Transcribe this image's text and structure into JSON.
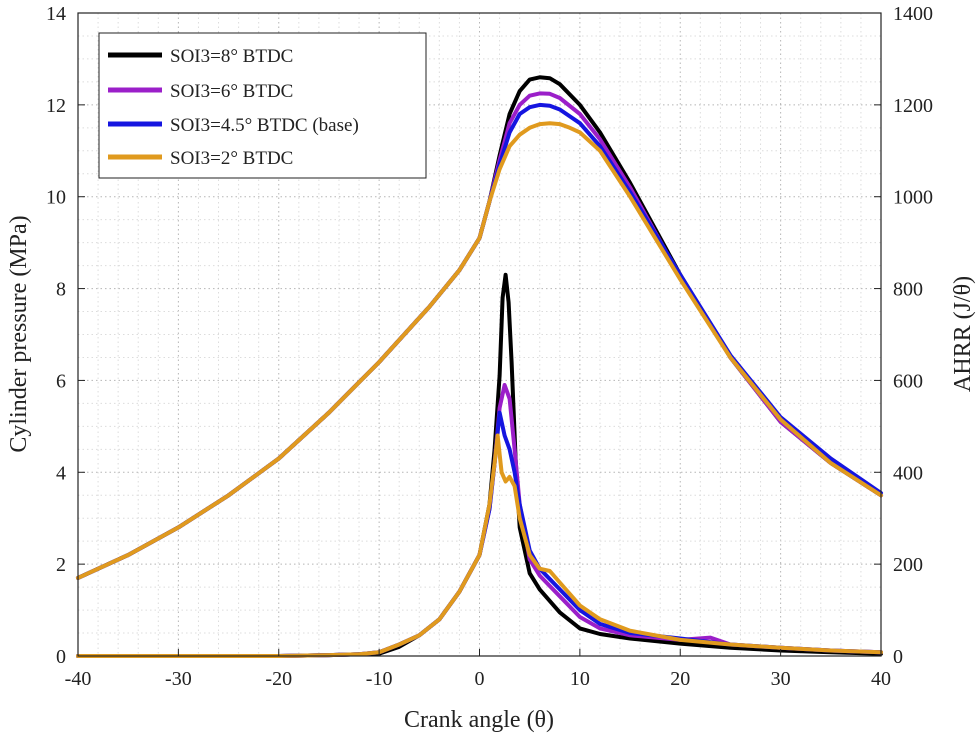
{
  "chart_data": {
    "type": "line",
    "title": "",
    "xlabel": "Crank angle (θ)",
    "ylabel_left": "Cylinder pressure (MPa)",
    "ylabel_right": "AHRR (J/θ)",
    "xlim": [
      -40,
      40
    ],
    "ylim_left": [
      0,
      14
    ],
    "ylim_right": [
      0,
      1400
    ],
    "xticks": [
      -40,
      -30,
      -20,
      -10,
      0,
      10,
      20,
      30,
      40
    ],
    "yticks_left": [
      0,
      2,
      4,
      6,
      8,
      10,
      12,
      14
    ],
    "yticks_right": [
      0,
      200,
      400,
      600,
      800,
      1000,
      1200,
      1400
    ],
    "grid": true,
    "legend_position": "top-left",
    "series": [
      {
        "name": "SOI3=8° BTDC",
        "color": "#000000",
        "pressure": {
          "x": [
            -40,
            -35,
            -30,
            -25,
            -20,
            -15,
            -10,
            -5,
            -2,
            0,
            1,
            2,
            3,
            4,
            5,
            6,
            7,
            8,
            10,
            12,
            15,
            20,
            25,
            30,
            35,
            40
          ],
          "y": [
            1.7,
            2.2,
            2.8,
            3.5,
            4.3,
            5.3,
            6.4,
            7.6,
            8.4,
            9.1,
            9.9,
            10.9,
            11.8,
            12.3,
            12.55,
            12.6,
            12.58,
            12.45,
            12.0,
            11.4,
            10.3,
            8.3,
            6.5,
            5.1,
            4.2,
            3.5
          ]
        },
        "ahrr": {
          "x": [
            -40,
            -20,
            -15,
            -12,
            -10,
            -8,
            -6,
            -4,
            -2,
            0,
            1,
            1.5,
            2,
            2.3,
            2.6,
            2.9,
            3.2,
            3.6,
            4,
            5,
            6,
            8,
            10,
            12,
            15,
            20,
            25,
            30,
            35,
            40
          ],
          "y": [
            0,
            0,
            2,
            4,
            5,
            20,
            45,
            80,
            140,
            220,
            330,
            450,
            610,
            780,
            830,
            770,
            640,
            430,
            280,
            180,
            145,
            95,
            60,
            48,
            38,
            27,
            18,
            12,
            8,
            5
          ]
        }
      },
      {
        "name": "SOI3=6° BTDC",
        "color": "#9b1fc9",
        "pressure": {
          "x": [
            -40,
            -35,
            -30,
            -25,
            -20,
            -15,
            -10,
            -5,
            -2,
            0,
            1,
            2,
            3,
            4,
            5,
            6,
            7,
            8,
            10,
            12,
            15,
            20,
            25,
            30,
            35,
            40
          ],
          "y": [
            1.7,
            2.2,
            2.8,
            3.5,
            4.3,
            5.3,
            6.4,
            7.6,
            8.4,
            9.1,
            9.9,
            10.8,
            11.6,
            12.0,
            12.2,
            12.25,
            12.24,
            12.15,
            11.8,
            11.25,
            10.2,
            8.25,
            6.5,
            5.1,
            4.2,
            3.5
          ]
        },
        "ahrr": {
          "x": [
            -40,
            -20,
            -15,
            -12,
            -10,
            -8,
            -6,
            -4,
            -2,
            0,
            1,
            1.5,
            2,
            2.5,
            3,
            3.5,
            4,
            5,
            6,
            8,
            10,
            12,
            15,
            20,
            23,
            25,
            30,
            35,
            40
          ],
          "y": [
            0,
            0,
            2,
            4,
            8,
            25,
            45,
            80,
            140,
            220,
            320,
            420,
            540,
            590,
            560,
            450,
            330,
            210,
            175,
            130,
            85,
            60,
            45,
            35,
            40,
            25,
            18,
            12,
            8
          ]
        }
      },
      {
        "name": "SOI3=4.5° BTDC (base)",
        "color": "#1515e0",
        "pressure": {
          "x": [
            -40,
            -35,
            -30,
            -25,
            -20,
            -15,
            -10,
            -5,
            -2,
            0,
            1,
            2,
            3,
            4,
            5,
            6,
            7,
            8,
            10,
            12,
            15,
            20,
            25,
            30,
            35,
            40
          ],
          "y": [
            1.7,
            2.2,
            2.8,
            3.5,
            4.3,
            5.3,
            6.4,
            7.6,
            8.4,
            9.1,
            9.9,
            10.7,
            11.4,
            11.8,
            11.95,
            12.0,
            11.98,
            11.9,
            11.6,
            11.1,
            10.1,
            8.3,
            6.55,
            5.2,
            4.3,
            3.55
          ]
        },
        "ahrr": {
          "x": [
            -40,
            -20,
            -15,
            -12,
            -10,
            -8,
            -6,
            -4,
            -2,
            0,
            1,
            1.5,
            2,
            2.5,
            3,
            3.5,
            4,
            5,
            6,
            8,
            10,
            12,
            15,
            20,
            25,
            30,
            35,
            40
          ],
          "y": [
            0,
            0,
            2,
            4,
            8,
            25,
            45,
            80,
            140,
            220,
            320,
            420,
            530,
            480,
            450,
            400,
            330,
            230,
            190,
            145,
            100,
            70,
            50,
            38,
            25,
            18,
            12,
            8
          ]
        }
      },
      {
        "name": "SOI3=2° BTDC",
        "color": "#e09a1e",
        "pressure": {
          "x": [
            -40,
            -35,
            -30,
            -25,
            -20,
            -15,
            -10,
            -5,
            -2,
            0,
            1,
            2,
            3,
            4,
            5,
            6,
            7,
            8,
            9,
            10,
            12,
            15,
            20,
            25,
            30,
            35,
            40
          ],
          "y": [
            1.7,
            2.2,
            2.8,
            3.5,
            4.3,
            5.3,
            6.4,
            7.6,
            8.4,
            9.1,
            9.9,
            10.6,
            11.1,
            11.35,
            11.5,
            11.58,
            11.6,
            11.58,
            11.5,
            11.4,
            11.0,
            10.0,
            8.2,
            6.5,
            5.15,
            4.2,
            3.5
          ]
        },
        "ahrr": {
          "x": [
            -40,
            -20,
            -15,
            -12,
            -10,
            -8,
            -6,
            -4,
            -2,
            0,
            1,
            1.5,
            1.8,
            2.2,
            2.6,
            3,
            3.5,
            4,
            5,
            6,
            7,
            8,
            10,
            12,
            15,
            20,
            25,
            30,
            35,
            40
          ],
          "y": [
            0,
            0,
            2,
            4,
            8,
            25,
            45,
            80,
            140,
            220,
            330,
            420,
            480,
            400,
            380,
            390,
            370,
            300,
            220,
            190,
            185,
            160,
            110,
            80,
            55,
            35,
            25,
            18,
            12,
            8
          ]
        }
      }
    ]
  }
}
